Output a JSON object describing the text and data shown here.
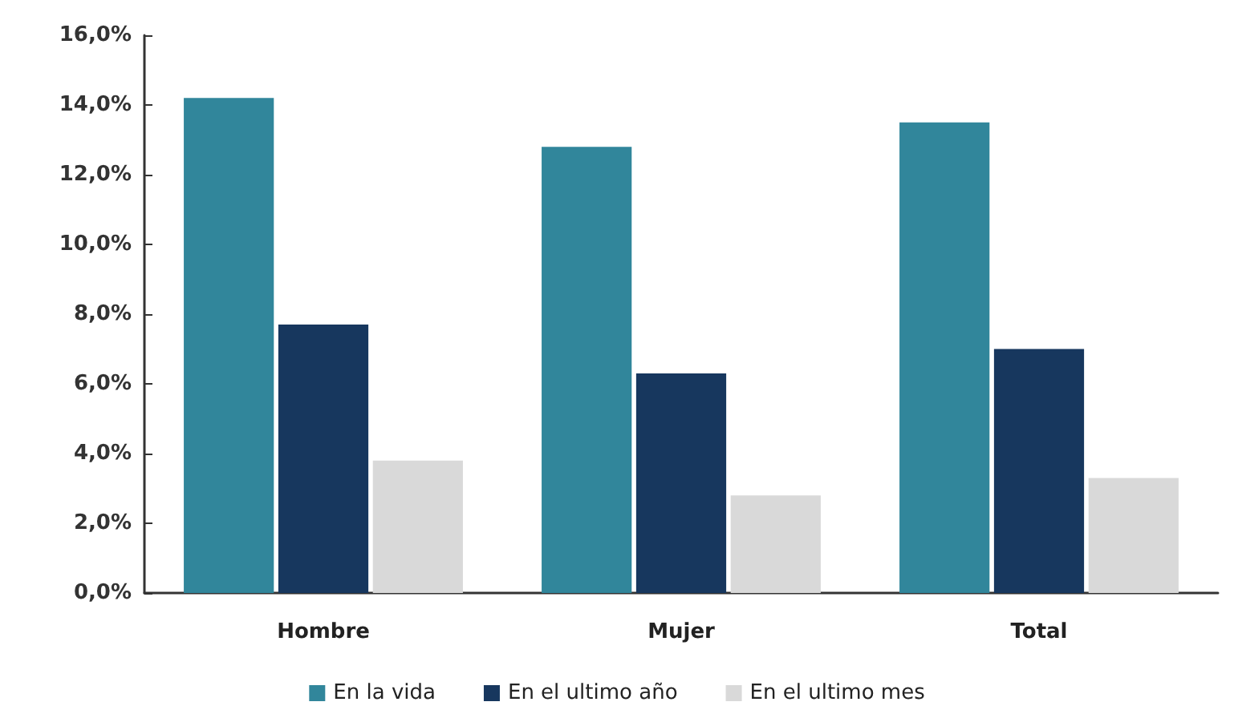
{
  "chart_data": {
    "type": "bar",
    "categories": [
      "Hombre",
      "Mujer",
      "Total"
    ],
    "series": [
      {
        "name": "En la vida",
        "color": "#31869b",
        "values": [
          14.2,
          12.8,
          13.5
        ]
      },
      {
        "name": "En el ultimo año",
        "color": "#17375e",
        "values": [
          7.7,
          6.3,
          7.0
        ]
      },
      {
        "name": "En el ultimo mes",
        "color": "#d9d9d9",
        "values": [
          3.8,
          2.8,
          3.3
        ]
      }
    ],
    "ylim": [
      0,
      16
    ],
    "yticks": [
      {
        "value": 0,
        "label": "0,0%"
      },
      {
        "value": 2,
        "label": "2,0%"
      },
      {
        "value": 4,
        "label": "4,0%"
      },
      {
        "value": 6,
        "label": "6,0%"
      },
      {
        "value": 8,
        "label": "8,0%"
      },
      {
        "value": 10,
        "label": "10,0%"
      },
      {
        "value": 12,
        "label": "12,0%"
      },
      {
        "value": 14,
        "label": "14,0%"
      },
      {
        "value": 16,
        "label": "16,0%"
      }
    ],
    "grid": false,
    "legend": "bottom"
  }
}
